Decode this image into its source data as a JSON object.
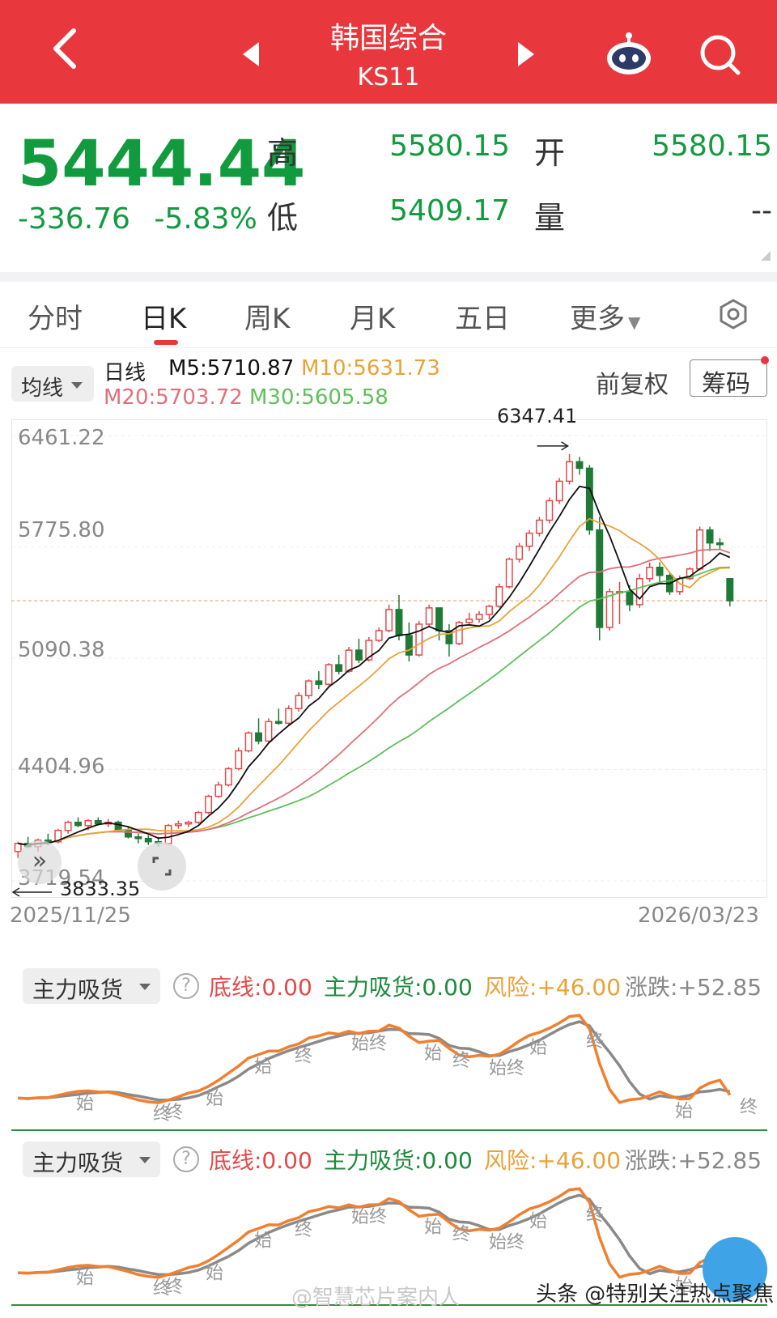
{
  "header": {
    "title": "韩国综合",
    "code": "KS11"
  },
  "quote": {
    "price": "5444.44",
    "change": "-336.76",
    "change_pct": "-5.83%",
    "high_label": "高",
    "high": "5580.15",
    "open_label": "开",
    "open": "5580.15",
    "low_label": "低",
    "low": "5409.17",
    "volume_label": "量",
    "volume": "--"
  },
  "tabs": [
    "分时",
    "日K",
    "周K",
    "月K",
    "五日",
    "更多"
  ],
  "active_tab": "日K",
  "ma_bar": {
    "select": "均线",
    "period": "日线",
    "m5": "M5:5710.87",
    "m10": "M10:5631.73",
    "m20": "M20:5703.72",
    "m30": "M30:5605.58",
    "adjust": "前复权",
    "chips": "筹码"
  },
  "chart_data": {
    "type": "candlestick",
    "y_ticks": [
      "6461.22",
      "5775.80",
      "5090.38",
      "4404.96",
      "3719.54"
    ],
    "x_start": "2025/11/25",
    "x_end": "2026/03/23",
    "high_marker": "6347.41",
    "low_marker": "3833.35",
    "ylim": [
      3719.54,
      6461.22
    ],
    "candles": [
      [
        3900,
        3960,
        3860,
        3950
      ],
      [
        3950,
        3990,
        3920,
        3930
      ],
      [
        3930,
        3980,
        3900,
        3970
      ],
      [
        3970,
        4010,
        3940,
        3960
      ],
      [
        3960,
        4040,
        3950,
        4030
      ],
      [
        4030,
        4090,
        4010,
        4080
      ],
      [
        4080,
        4110,
        4050,
        4060
      ],
      [
        4060,
        4100,
        4030,
        4090
      ],
      [
        4090,
        4110,
        4060,
        4070
      ],
      [
        4070,
        4100,
        4050,
        4080
      ],
      [
        4080,
        4090,
        4020,
        4030
      ],
      [
        4030,
        4050,
        3980,
        3990
      ],
      [
        3990,
        4010,
        3950,
        3980
      ],
      [
        3980,
        4000,
        3940,
        3960
      ],
      [
        3960,
        3990,
        3930,
        3950
      ],
      [
        3950,
        4070,
        3940,
        4060
      ],
      [
        4060,
        4090,
        4040,
        4070
      ],
      [
        4070,
        4090,
        4050,
        4080
      ],
      [
        4080,
        4150,
        4070,
        4140
      ],
      [
        4140,
        4250,
        4130,
        4240
      ],
      [
        4240,
        4330,
        4230,
        4310
      ],
      [
        4310,
        4420,
        4300,
        4410
      ],
      [
        4410,
        4540,
        4400,
        4520
      ],
      [
        4520,
        4640,
        4510,
        4630
      ],
      [
        4630,
        4720,
        4560,
        4580
      ],
      [
        4580,
        4720,
        4570,
        4700
      ],
      [
        4700,
        4780,
        4680,
        4690
      ],
      [
        4690,
        4800,
        4680,
        4780
      ],
      [
        4780,
        4880,
        4760,
        4860
      ],
      [
        4860,
        4960,
        4840,
        4950
      ],
      [
        4950,
        5010,
        4900,
        4930
      ],
      [
        4930,
        5060,
        4920,
        5050
      ],
      [
        5050,
        5110,
        4990,
        5010
      ],
      [
        5010,
        5160,
        5000,
        5140
      ],
      [
        5140,
        5210,
        5060,
        5080
      ],
      [
        5080,
        5220,
        5070,
        5200
      ],
      [
        5200,
        5280,
        5190,
        5260
      ],
      [
        5260,
        5420,
        5250,
        5390
      ],
      [
        5390,
        5480,
        5200,
        5230
      ],
      [
        5230,
        5310,
        5070,
        5110
      ],
      [
        5110,
        5320,
        5100,
        5300
      ],
      [
        5300,
        5420,
        5280,
        5400
      ],
      [
        5400,
        5400,
        5200,
        5260
      ],
      [
        5260,
        5300,
        5100,
        5180
      ],
      [
        5180,
        5320,
        5170,
        5310
      ],
      [
        5310,
        5370,
        5300,
        5330
      ],
      [
        5330,
        5380,
        5310,
        5360
      ],
      [
        5360,
        5420,
        5330,
        5410
      ],
      [
        5410,
        5550,
        5400,
        5530
      ],
      [
        5530,
        5710,
        5520,
        5700
      ],
      [
        5700,
        5800,
        5680,
        5780
      ],
      [
        5780,
        5880,
        5750,
        5860
      ],
      [
        5860,
        5960,
        5840,
        5940
      ],
      [
        5940,
        6080,
        5920,
        6060
      ],
      [
        6060,
        6200,
        6040,
        6180
      ],
      [
        6180,
        6347,
        6160,
        6300
      ],
      [
        6300,
        6330,
        6220,
        6260
      ],
      [
        6260,
        6280,
        5850,
        5880
      ],
      [
        5880,
        5960,
        5200,
        5280
      ],
      [
        5280,
        5520,
        5260,
        5500
      ],
      [
        5500,
        5560,
        5300,
        5500
      ],
      [
        5500,
        5540,
        5380,
        5420
      ],
      [
        5420,
        5610,
        5400,
        5580
      ],
      [
        5580,
        5680,
        5560,
        5650
      ],
      [
        5650,
        5680,
        5560,
        5600
      ],
      [
        5600,
        5620,
        5480,
        5500
      ],
      [
        5500,
        5600,
        5480,
        5580
      ],
      [
        5580,
        5650,
        5570,
        5640
      ],
      [
        5640,
        5900,
        5630,
        5880
      ],
      [
        5880,
        5900,
        5750,
        5800
      ],
      [
        5800,
        5830,
        5760,
        5790
      ],
      [
        5580,
        5580,
        5409,
        5444
      ]
    ]
  },
  "indicators": [
    {
      "select": "主力吸货",
      "help": "?",
      "bottom": "底线:0.00",
      "main": "主力吸货:0.00",
      "risk": "风险:+46.00",
      "change": "涨跌:+52.85"
    },
    {
      "select": "主力吸货",
      "help": "?",
      "bottom": "底线:0.00",
      "main": "主力吸货:0.00",
      "risk": "风险:+46.00",
      "change": "涨跌:+52.85"
    }
  ],
  "signal_labels": [
    "始",
    "终",
    "始",
    "终",
    "始终",
    "始",
    "终",
    "始终",
    "始",
    "终",
    "始",
    "终",
    "始",
    "终"
  ],
  "watermarks": {
    "weibo": "@智慧芯片案内人",
    "toutiao": "头条 @特别关注热点聚焦"
  },
  "colors": {
    "header": "#e8383d",
    "up": "#e24a4a",
    "down": "#1f7a35",
    "price_green": "#129a3f",
    "m5": "#111111",
    "m10": "#e8a23a",
    "m20": "#e0707a",
    "m30": "#5fbf5a"
  }
}
